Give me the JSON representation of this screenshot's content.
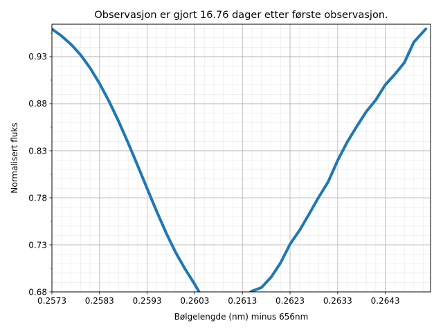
{
  "chart_data": {
    "type": "line",
    "title": "Observasjon er gjort 16.76 dager etter første observasjon.",
    "xlabel": "Bølgelengde (nm) minus 656nm",
    "ylabel": "Normalisert fluks",
    "xlim": [
      0.2573,
      0.26525
    ],
    "ylim": [
      0.68,
      0.9645
    ],
    "x_ticks": [
      0.2573,
      0.2583,
      0.2593,
      0.2603,
      0.2613,
      0.2623,
      0.2633,
      0.2643
    ],
    "x_tick_labels": [
      "0.2573",
      "0.2583",
      "0.2593",
      "0.2603",
      "0.2613",
      "0.2623",
      "0.2633",
      "0.2643"
    ],
    "y_ticks": [
      0.68,
      0.73,
      0.78,
      0.83,
      0.88,
      0.93
    ],
    "y_tick_labels": [
      "0.68",
      "0.73",
      "0.78",
      "0.83",
      "0.88",
      "0.93"
    ],
    "grid": true,
    "minor_grid": true,
    "series": [
      {
        "color": "#1f77b4",
        "x": [
          0.2573,
          0.2575,
          0.2577,
          0.2579,
          0.2581,
          0.2583,
          0.2585,
          0.2587,
          0.2589,
          0.2591,
          0.2593,
          0.2595,
          0.2597,
          0.2599,
          0.2601,
          0.2603,
          0.2605,
          0.2607,
          0.2609,
          0.2611,
          0.2613,
          0.2615,
          0.2617,
          0.2619,
          0.2621,
          0.2623,
          0.2625,
          0.2627,
          0.2629,
          0.2631,
          0.2633,
          0.2635,
          0.2637,
          0.2639,
          0.2641,
          0.2643,
          0.2645,
          0.2647,
          0.2649,
          0.26515
        ],
        "values": [
          0.9594,
          0.9521,
          0.9432,
          0.932,
          0.9181,
          0.9015,
          0.8825,
          0.8613,
          0.8384,
          0.8143,
          0.7898,
          0.7655,
          0.7425,
          0.7217,
          0.704,
          0.688,
          0.6703,
          0.6707,
          0.669,
          0.6722,
          0.6738,
          0.6808,
          0.6846,
          0.6955,
          0.7108,
          0.7307,
          0.7454,
          0.7627,
          0.7805,
          0.7969,
          0.8197,
          0.8392,
          0.8558,
          0.8715,
          0.884,
          0.9001,
          0.9112,
          0.9237,
          0.9455,
          0.9595
        ]
      }
    ]
  }
}
